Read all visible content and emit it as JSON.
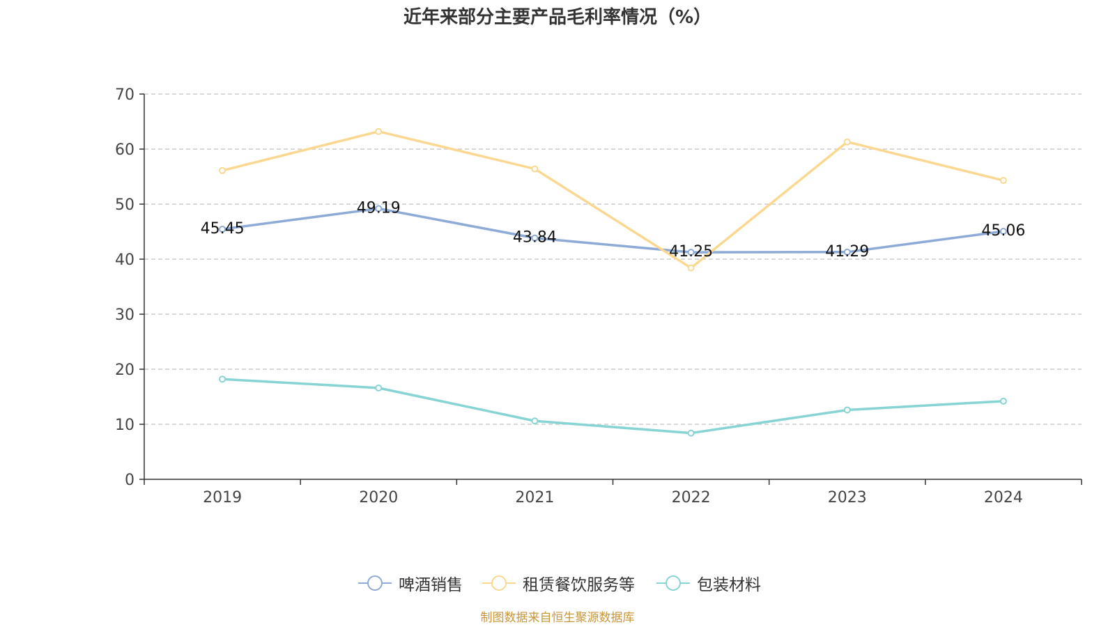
{
  "chart_data": {
    "type": "line",
    "title": "近年来部分主要产品毛利率情况（%）",
    "categories": [
      "2019",
      "2020",
      "2021",
      "2022",
      "2023",
      "2024"
    ],
    "ylim": [
      0,
      70
    ],
    "yticks": [
      0,
      10,
      20,
      30,
      40,
      50,
      60,
      70
    ],
    "grid": true,
    "legend_position": "bottom",
    "series": [
      {
        "name": "啤酒销售",
        "color": "#8eaad6",
        "values": [
          45.45,
          49.19,
          43.84,
          41.25,
          41.29,
          45.06
        ],
        "labels": [
          "45.45",
          "49.19",
          "43.84",
          "41.25",
          "41.29",
          "45.06"
        ]
      },
      {
        "name": "租赁餐饮服务等",
        "color": "#fad892",
        "values": [
          56.1,
          63.2,
          56.4,
          38.4,
          61.3,
          54.3
        ]
      },
      {
        "name": "包装材料",
        "color": "#88d4d4",
        "values": [
          18.2,
          16.6,
          10.6,
          8.4,
          12.6,
          14.2
        ]
      }
    ]
  },
  "footer": {
    "source": "制图数据来自恒生聚源数据库"
  }
}
